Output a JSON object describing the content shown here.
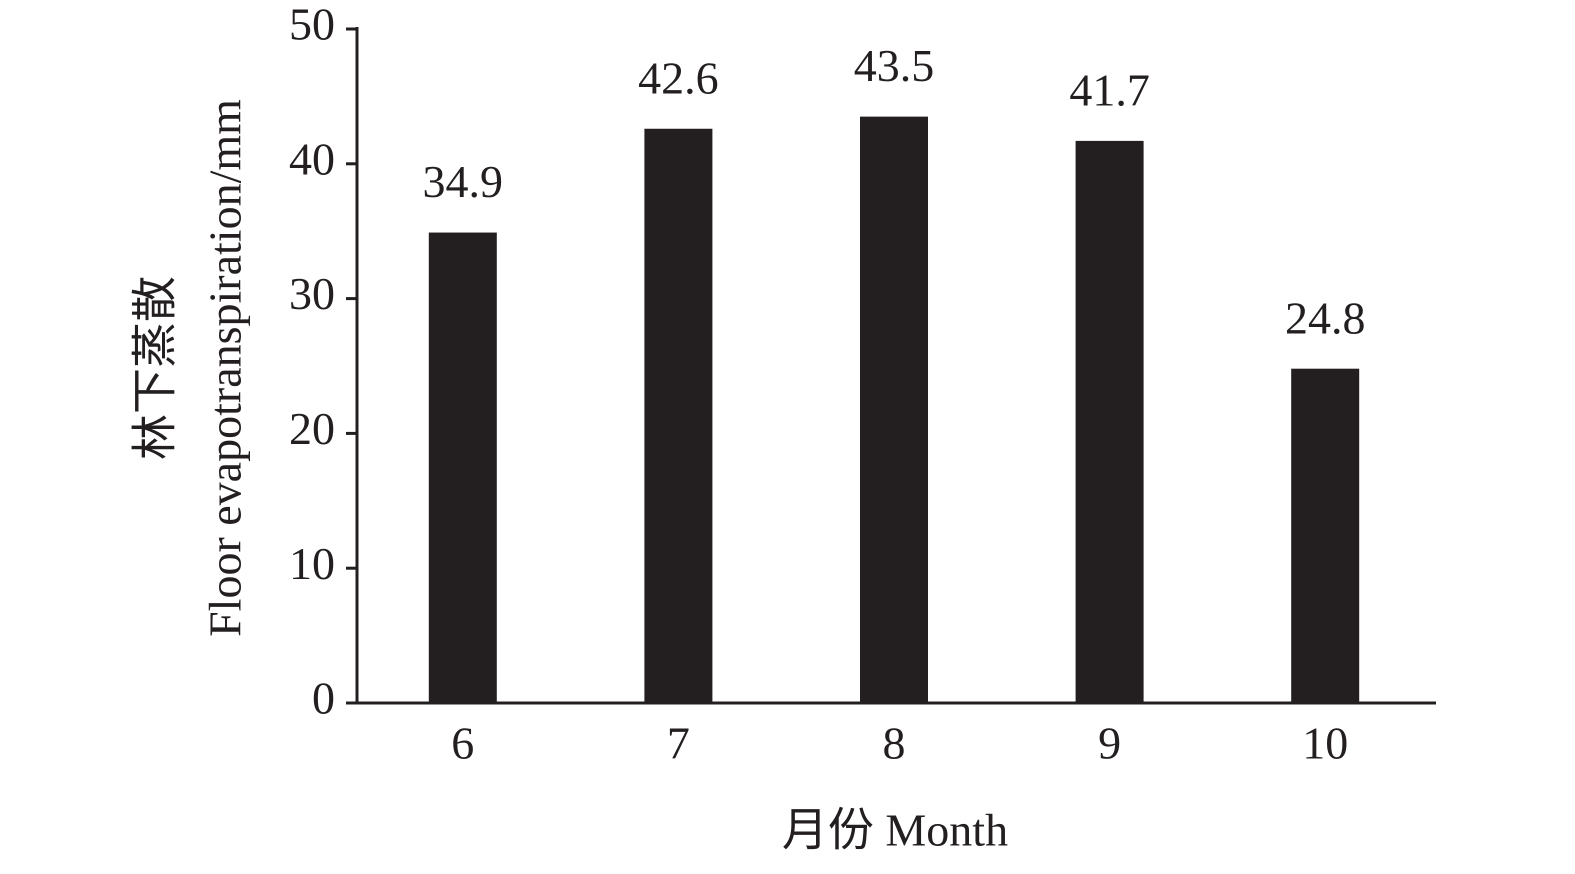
{
  "chart_data": {
    "type": "bar",
    "y_label": [
      "林下蒸散",
      "Floor evapotranspiration/mm"
    ],
    "x_label": "月份 Month",
    "categories": [
      "6",
      "7",
      "8",
      "9",
      "10"
    ],
    "values": [
      34.9,
      42.6,
      43.5,
      41.7,
      24.8
    ],
    "color": "#231f20",
    "ylim": [
      0,
      50
    ],
    "yticks": [
      0,
      10,
      20,
      30,
      40,
      50
    ],
    "grid": false
  }
}
